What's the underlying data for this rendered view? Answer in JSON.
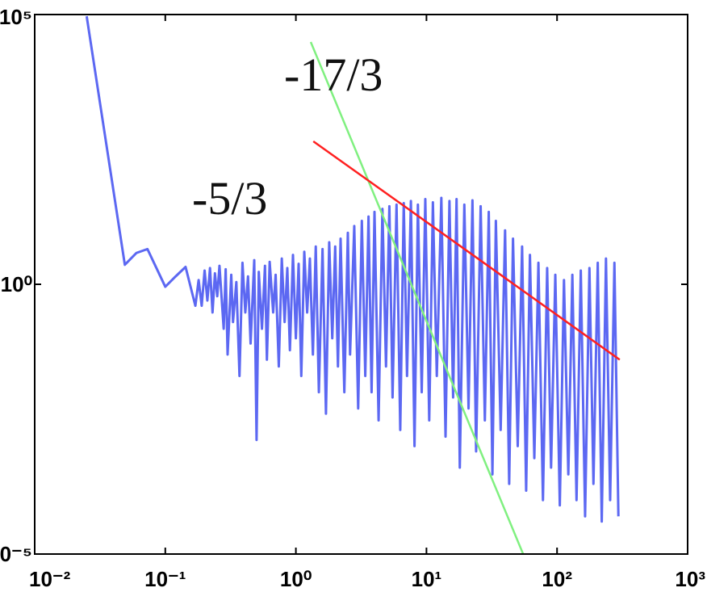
{
  "chart_data": {
    "type": "line",
    "xscale": "log",
    "yscale": "log",
    "grid": false,
    "xlim": [
      0.01,
      1000
    ],
    "ylim": [
      1e-05,
      100000
    ],
    "xticks": [
      {
        "value": 0.01,
        "label": "10⁻²"
      },
      {
        "value": 0.1,
        "label": "10⁻¹"
      },
      {
        "value": 1,
        "label": "10⁰"
      },
      {
        "value": 10,
        "label": "10¹"
      },
      {
        "value": 100,
        "label": "10²"
      },
      {
        "value": 1000,
        "label": "10³"
      }
    ],
    "yticks": [
      {
        "value": 100000,
        "label": "10⁵"
      },
      {
        "value": 1,
        "label": "10⁰"
      },
      {
        "value": 1e-05,
        "label": "10⁻⁵"
      }
    ],
    "annotations": [
      {
        "text": "-17/3"
      },
      {
        "text": "-5/3"
      }
    ],
    "series": [
      {
        "color": "#5c68f2",
        "x": [
          0.025,
          0.049,
          0.06,
          0.073,
          0.1,
          0.12,
          0.143,
          0.17,
          0.18,
          0.19,
          0.2,
          0.21,
          0.22,
          0.23,
          0.24,
          0.25,
          0.26,
          0.28,
          0.29,
          0.3,
          0.32,
          0.33,
          0.35,
          0.37,
          0.39,
          0.41,
          0.43,
          0.45,
          0.48,
          0.5,
          0.52,
          0.55,
          0.58,
          0.6,
          0.63,
          0.67,
          0.7,
          0.74,
          0.78,
          0.82,
          0.86,
          0.9,
          0.95,
          1,
          1.05,
          1.1,
          1.16,
          1.22,
          1.28,
          1.35,
          1.42,
          1.5,
          1.6,
          1.7,
          1.8,
          1.9,
          2,
          2.1,
          2.2,
          2.35,
          2.5,
          2.6,
          2.8,
          3,
          3.2,
          3.4,
          3.6,
          3.8,
          4,
          4.3,
          4.6,
          4.9,
          5.2,
          5.5,
          5.9,
          6.3,
          6.7,
          7.1,
          7.6,
          8.1,
          8.6,
          9.2,
          9.8,
          10.5,
          11.2,
          12,
          13,
          14,
          15,
          16,
          17,
          18,
          19.5,
          21,
          22.5,
          24,
          26,
          28,
          30,
          32,
          34,
          37,
          40,
          43,
          46,
          50,
          54,
          58,
          62,
          67,
          72,
          78,
          84,
          90,
          97,
          105,
          113,
          122,
          131,
          141,
          152,
          164,
          177,
          190,
          205,
          220,
          237,
          255,
          275,
          295
        ],
        "values": [
          93000,
          2.3,
          3.8,
          4.5,
          0.9,
          1.4,
          2.1,
          0.4,
          1.2,
          0.4,
          1.8,
          0.5,
          2,
          0.3,
          1.6,
          0.6,
          2.2,
          0.15,
          1.9,
          0.05,
          1.5,
          0.2,
          1.1,
          0.02,
          2.5,
          0.3,
          1.4,
          0.08,
          2.8,
          0.0013,
          1.7,
          0.15,
          2.2,
          0.04,
          2.6,
          0.3,
          1.5,
          0.03,
          3,
          0.2,
          2,
          0.06,
          3.5,
          0.1,
          2.4,
          0.02,
          4,
          0.3,
          3,
          0.05,
          5,
          0.01,
          4.5,
          0.004,
          6,
          0.1,
          5,
          0.03,
          7,
          0.01,
          9,
          0.05,
          12,
          0.005,
          15,
          0.02,
          18,
          0.01,
          22,
          0.003,
          25,
          0.03,
          28,
          0.008,
          30,
          0.002,
          32,
          0.02,
          35,
          0.001,
          30,
          0.01,
          38,
          0.003,
          33,
          0.02,
          40,
          0.0015,
          35,
          0.008,
          38,
          0.0004,
          30,
          0.005,
          36,
          0.0008,
          28,
          0.003,
          22,
          0.0003,
          15,
          0.002,
          10,
          0.0002,
          7,
          0.001,
          5,
          0.00015,
          3.5,
          0.0006,
          2.5,
          0.0001,
          2,
          0.0004,
          1.5,
          8e-05,
          1.2,
          0.0003,
          1.5,
          0.0001,
          1.8,
          5e-05,
          2,
          0.0002,
          2.5,
          4e-05,
          3,
          0.0001,
          2.5,
          5e-05
        ]
      },
      {
        "color": "#80f080",
        "x": [
          1.3,
          55
        ],
        "values": [
          31000,
          1e-05
        ]
      },
      {
        "color": "#ff2020",
        "x": [
          1.36,
          302
        ],
        "values": [
          447,
          0.04
        ]
      }
    ]
  }
}
